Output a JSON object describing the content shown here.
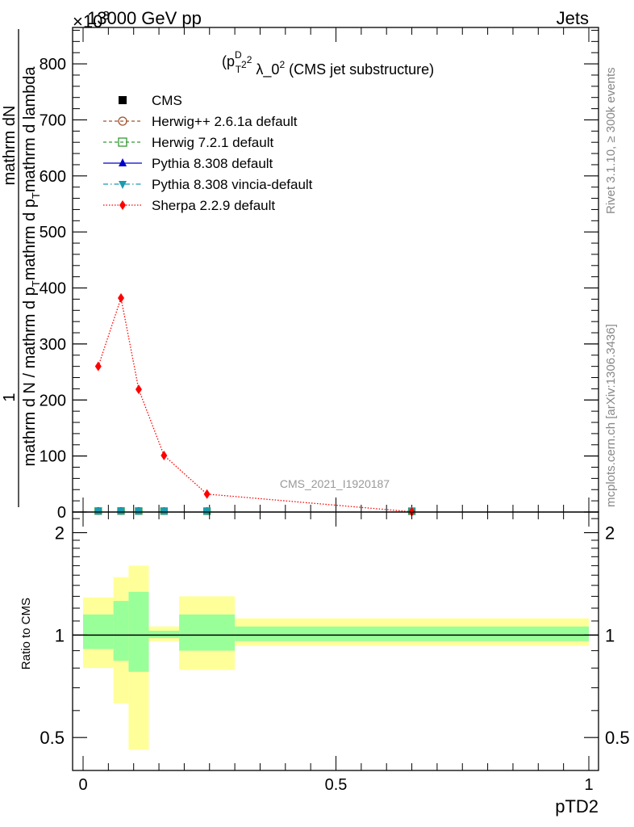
{
  "header": {
    "left": "13000 GeV pp",
    "right": "Jets",
    "exponent_label": "×10",
    "exponent_sup": "3"
  },
  "side_text": {
    "rivet": "Rivet 3.1.10, ≥ 300k events",
    "mcplots": "mcplots.cern.ch [arXiv:1306.3436]"
  },
  "watermark": "CMS_2021_I1920187",
  "chart_data": [
    {
      "type": "line",
      "title": "(p_T^D)^2 λ_0^2 (CMS jet substructure)",
      "title_parts": {
        "p": "(p",
        "sub": "T",
        "sup": "D",
        "sup2": "2",
        "rest": " λ_0",
        "sup3": "2",
        "tail": " (CMS jet substructure)"
      },
      "ylabel_top": "1",
      "ylabel_num": "mathrm dN",
      "ylabel_den": "mathrm d N / mathrm d p_T mathrm d p_T mathrm d lambda",
      "ylabel_den_parts": {
        "a": "mathrm d N / mathrm d p",
        "sub": "T",
        "b": "mathrm d p",
        "sub2": "T",
        "c": "mathrm d lambda"
      },
      "xlim": [
        0,
        1
      ],
      "ylim": [
        0,
        865
      ],
      "y_scale_note": "×10^3",
      "yticks": [
        0,
        100,
        200,
        300,
        400,
        500,
        600,
        700,
        800
      ],
      "legend": [
        {
          "name": "CMS",
          "marker": "square-filled",
          "color": "#000000",
          "line": "none"
        },
        {
          "name": "Herwig++ 2.6.1a default",
          "marker": "circle-open",
          "color": "#a0522d",
          "line": "dashed"
        },
        {
          "name": "Herwig 7.2.1 default",
          "marker": "square-open",
          "color": "#339933",
          "line": "dashed"
        },
        {
          "name": "Pythia 8.308 default",
          "marker": "triangle-up",
          "color": "#0000cc",
          "line": "solid"
        },
        {
          "name": "Pythia 8.308 vincia-default",
          "marker": "triangle-down",
          "color": "#1a9bb0",
          "line": "dashdot"
        },
        {
          "name": "Sherpa 2.2.9 default",
          "marker": "diamond",
          "color": "#ff0000",
          "line": "dotted"
        }
      ],
      "x": [
        0.03,
        0.075,
        0.11,
        0.16,
        0.245,
        0.65
      ],
      "series": [
        {
          "name": "CMS",
          "values": [
            0.3,
            0.4,
            0.3,
            0.2,
            0.1,
            0.01
          ]
        },
        {
          "name": "Sherpa 2.2.9 default",
          "values": [
            260,
            382,
            219,
            101,
            32,
            0.5
          ]
        }
      ]
    },
    {
      "type": "area",
      "ylabel": "Ratio to CMS",
      "xlabel": "pTD2",
      "xlim": [
        0,
        1
      ],
      "ylim": [
        0.4,
        2.3
      ],
      "y_scale": "log",
      "yticks": [
        0.5,
        1,
        2
      ],
      "xticks": [
        0,
        0.5,
        1
      ],
      "xtick_labels": [
        "0",
        "0.5",
        "1"
      ],
      "bins": [
        {
          "lo": 0.0,
          "hi": 0.06,
          "inner": [
            0.91,
            1.15
          ],
          "outer": [
            0.8,
            1.29
          ]
        },
        {
          "lo": 0.06,
          "hi": 0.09,
          "inner": [
            0.84,
            1.26
          ],
          "outer": [
            0.63,
            1.48
          ]
        },
        {
          "lo": 0.09,
          "hi": 0.13,
          "inner": [
            0.78,
            1.34
          ],
          "outer": [
            0.46,
            1.6
          ]
        },
        {
          "lo": 0.13,
          "hi": 0.19,
          "inner": [
            0.98,
            1.03
          ],
          "outer": [
            0.96,
            1.06
          ]
        },
        {
          "lo": 0.19,
          "hi": 0.3,
          "inner": [
            0.9,
            1.15
          ],
          "outer": [
            0.79,
            1.3
          ]
        },
        {
          "lo": 0.3,
          "hi": 1.0,
          "inner": [
            0.96,
            1.06
          ],
          "outer": [
            0.93,
            1.12
          ]
        }
      ],
      "band_colors": {
        "inner": "#99ff99",
        "outer": "#ffff99"
      }
    }
  ]
}
